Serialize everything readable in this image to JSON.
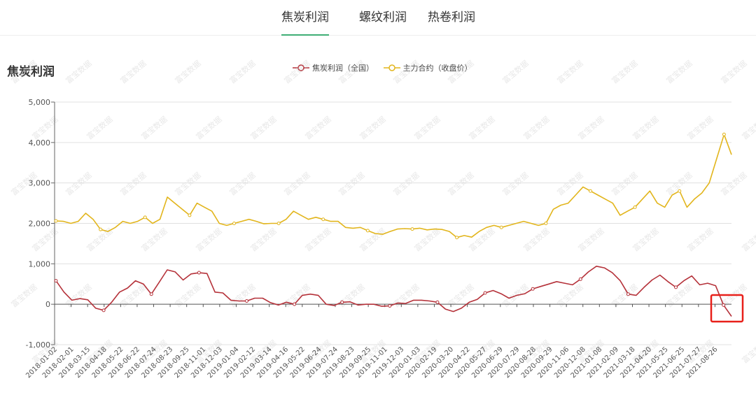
{
  "tabs": [
    {
      "label": "焦炭利润",
      "active": true
    },
    {
      "label": "螺纹利润",
      "active": false
    },
    {
      "label": "热卷利润",
      "active": false
    }
  ],
  "chart_data": {
    "type": "line",
    "title": "焦炭利润",
    "watermark": "富宝数据",
    "ylim": [
      -1000,
      5000
    ],
    "yticks": [
      "-1,000",
      "0",
      "1,000",
      "2,000",
      "3,000",
      "4,000",
      "5,000"
    ],
    "grid": true,
    "legend_position": "top-center",
    "x_tick_labels": [
      "2018-01-02",
      "2018-02-01",
      "2018-03-15",
      "2018-04-18",
      "2018-05-22",
      "2018-06-22",
      "2018-07-24",
      "2018-08-23",
      "2018-09-25",
      "2018-11-01",
      "2018-12-03",
      "2019-01-04",
      "2019-02-12",
      "2019-03-14",
      "2019-04-16",
      "2019-05-22",
      "2019-06-24",
      "2019-07-24",
      "2019-08-23",
      "2019-09-25",
      "2019-11-01",
      "2019-12-03",
      "2020-01-03",
      "2020-02-19",
      "2020-03-20",
      "2020-04-22",
      "2020-05-27",
      "2020-06-29",
      "2020-07-29",
      "2020-08-28",
      "2020-09-29",
      "2020-11-06",
      "2020-12-08",
      "2021-01-08",
      "2021-02-09",
      "2021-03-18",
      "2021-04-20",
      "2021-05-25",
      "2021-06-25",
      "2021-07-27",
      "2021-08-26"
    ],
    "series": [
      {
        "name": "焦炭利润（全国）",
        "color": "#b5323a",
        "values": [
          580,
          300,
          100,
          140,
          110,
          -100,
          -150,
          50,
          300,
          400,
          580,
          500,
          250,
          550,
          850,
          800,
          600,
          750,
          780,
          760,
          300,
          280,
          100,
          80,
          80,
          150,
          150,
          40,
          -20,
          50,
          0,
          220,
          250,
          220,
          0,
          -30,
          50,
          60,
          -20,
          0,
          0,
          -50,
          -40,
          30,
          20,
          100,
          100,
          80,
          50,
          -120,
          -180,
          -100,
          50,
          120,
          280,
          340,
          260,
          150,
          220,
          260,
          380,
          440,
          500,
          560,
          520,
          480,
          620,
          800,
          940,
          900,
          780,
          580,
          250,
          220,
          420,
          600,
          720,
          560,
          420,
          580,
          700,
          480,
          520,
          460,
          -20,
          -300
        ]
      },
      {
        "name": "主力合约（收盘价）",
        "color": "#e2b51c",
        "values": [
          2060,
          2050,
          2000,
          2050,
          2250,
          2100,
          1850,
          1800,
          1900,
          2050,
          2000,
          2050,
          2150,
          2000,
          2100,
          2650,
          2500,
          2350,
          2200,
          2500,
          2400,
          2300,
          2000,
          1950,
          2000,
          2050,
          2100,
          2050,
          1990,
          2000,
          2000,
          2100,
          2300,
          2200,
          2100,
          2150,
          2100,
          2050,
          2050,
          1900,
          1880,
          1900,
          1820,
          1750,
          1730,
          1800,
          1860,
          1870,
          1860,
          1880,
          1840,
          1860,
          1850,
          1800,
          1650,
          1700,
          1660,
          1800,
          1900,
          1950,
          1900,
          1950,
          2000,
          2050,
          2000,
          1950,
          2000,
          2350,
          2450,
          2500,
          2700,
          2900,
          2800,
          2700,
          2600,
          2500,
          2200,
          2300,
          2400,
          2600,
          2800,
          2500,
          2400,
          2700,
          2800,
          2400,
          2600,
          2750,
          3000,
          3600,
          4200,
          3700
        ]
      }
    ]
  }
}
